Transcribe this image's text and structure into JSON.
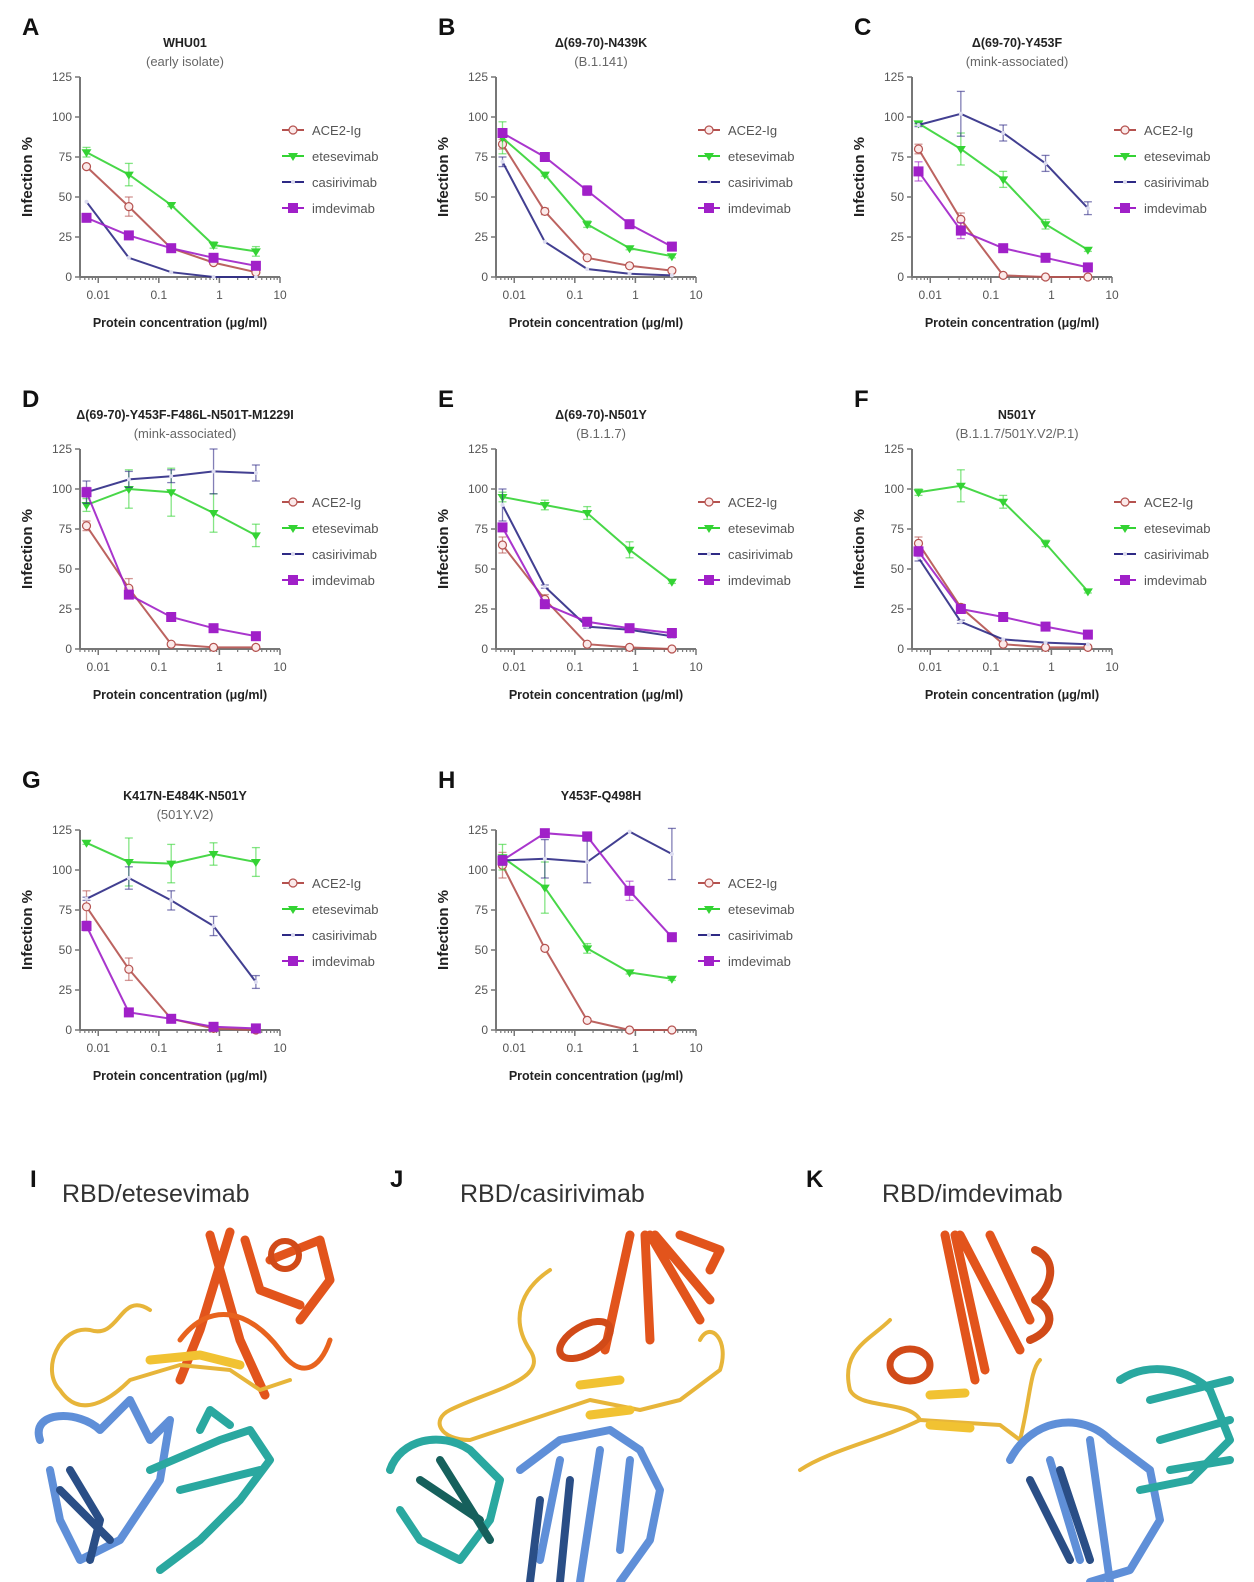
{
  "figure": {
    "legend": [
      "ACE2-Ig",
      "etesevimab",
      "casirivimab",
      "imdevimab"
    ],
    "series_colors": {
      "ACE2-Ig": "#b5524f",
      "etesevimab": "#34d334",
      "casirivimab": "#2e2a85",
      "imdevimab": "#a020c8"
    },
    "structures": [
      {
        "letter": "I",
        "title": "RBD/etesevimab"
      },
      {
        "letter": "J",
        "title": "RBD/casirivimab"
      },
      {
        "letter": "K",
        "title": "RBD/imdevimab"
      }
    ],
    "structure_colors": {
      "rbd_core": "#e2541c",
      "rbd_loop": "#e7b53a",
      "heavy_chain": "#5f8fd8",
      "heavy_chain_dark": "#2a4e86",
      "light_chain": "#2aa8a0"
    }
  },
  "chart_data": [
    {
      "type": "line",
      "letter": "A",
      "title": "WHU01",
      "subtitle": "(early isolate)",
      "xlabel": "Protein concentration (μg/ml)",
      "ylabel": "Infection %",
      "xscale": "log",
      "xlim": [
        0.005,
        10
      ],
      "ylim": [
        0,
        125
      ],
      "xticks": [
        "0.01",
        "0.1",
        "1",
        "10"
      ],
      "yticks": [
        "0",
        "25",
        "50",
        "75",
        "100",
        "125"
      ],
      "legend_position": "right",
      "x": [
        0.0064,
        0.032,
        0.16,
        0.8,
        4
      ],
      "series": [
        {
          "name": "ACE2-Ig",
          "values": [
            69,
            44,
            18,
            9,
            3
          ],
          "errors": [
            1,
            6,
            2,
            1,
            1
          ]
        },
        {
          "name": "etesevimab",
          "values": [
            78,
            64,
            45,
            20,
            16
          ],
          "errors": [
            3,
            7,
            1,
            2,
            3
          ]
        },
        {
          "name": "casirivimab",
          "values": [
            47,
            12,
            3,
            0,
            0
          ],
          "errors": [
            0,
            0,
            0,
            0,
            0
          ]
        },
        {
          "name": "imdevimab",
          "values": [
            37,
            26,
            18,
            12,
            7
          ],
          "errors": [
            1,
            1,
            2,
            1,
            1
          ]
        }
      ]
    },
    {
      "type": "line",
      "letter": "B",
      "title": "Δ(69-70)-N439K",
      "subtitle": "(B.1.141)",
      "xlabel": "Protein concentration (μg/ml)",
      "ylabel": "Infection %",
      "xscale": "log",
      "xlim": [
        0.005,
        10
      ],
      "ylim": [
        0,
        125
      ],
      "xticks": [
        "0.01",
        "0.1",
        "1",
        "10"
      ],
      "yticks": [
        "0",
        "25",
        "50",
        "75",
        "100",
        "125"
      ],
      "legend_position": "right",
      "x": [
        0.0064,
        0.032,
        0.16,
        0.8,
        4
      ],
      "series": [
        {
          "name": "ACE2-Ig",
          "values": [
            83,
            41,
            12,
            7,
            4
          ],
          "errors": [
            3,
            2,
            1,
            1,
            1
          ]
        },
        {
          "name": "etesevimab",
          "values": [
            87,
            64,
            33,
            18,
            13
          ],
          "errors": [
            10,
            1,
            2,
            1,
            1
          ]
        },
        {
          "name": "casirivimab",
          "values": [
            72,
            22,
            5,
            2,
            1
          ],
          "errors": [
            3,
            0,
            0,
            0,
            0
          ]
        },
        {
          "name": "imdevimab",
          "values": [
            90,
            75,
            54,
            33,
            19
          ],
          "errors": [
            2,
            1,
            3,
            1,
            2
          ]
        }
      ]
    },
    {
      "type": "line",
      "letter": "C",
      "title": "Δ(69-70)-Y453F",
      "subtitle": "(mink-associated)",
      "xlabel": "Protein concentration (μg/ml)",
      "ylabel": "Infection %",
      "xscale": "log",
      "xlim": [
        0.005,
        10
      ],
      "ylim": [
        0,
        125
      ],
      "xticks": [
        "0.01",
        "0.1",
        "1",
        "10"
      ],
      "yticks": [
        "0",
        "25",
        "50",
        "75",
        "100",
        "125"
      ],
      "legend_position": "right",
      "x": [
        0.0064,
        0.032,
        0.16,
        0.8,
        4
      ],
      "series": [
        {
          "name": "ACE2-Ig",
          "values": [
            80,
            36,
            1,
            0,
            0
          ],
          "errors": [
            3,
            4,
            0,
            0,
            0
          ]
        },
        {
          "name": "etesevimab",
          "values": [
            96,
            80,
            61,
            33,
            17
          ],
          "errors": [
            1,
            10,
            5,
            3,
            1
          ]
        },
        {
          "name": "casirivimab",
          "values": [
            95,
            102,
            90,
            71,
            43
          ],
          "errors": [
            1,
            14,
            5,
            5,
            4
          ]
        },
        {
          "name": "imdevimab",
          "values": [
            66,
            29,
            18,
            12,
            6
          ],
          "errors": [
            6,
            5,
            2,
            2,
            1
          ]
        }
      ]
    },
    {
      "type": "line",
      "letter": "D",
      "title": "Δ(69-70)-Y453F-F486L-N501T-M1229I",
      "subtitle": "(mink-associated)",
      "xlabel": "Protein concentration (μg/ml)",
      "ylabel": "Infection %",
      "xscale": "log",
      "xlim": [
        0.005,
        10
      ],
      "ylim": [
        0,
        125
      ],
      "xticks": [
        "0.01",
        "0.1",
        "1",
        "10"
      ],
      "yticks": [
        "0",
        "25",
        "50",
        "75",
        "100",
        "125"
      ],
      "legend_position": "right",
      "x": [
        0.0064,
        0.032,
        0.16,
        0.8,
        4
      ],
      "series": [
        {
          "name": "ACE2-Ig",
          "values": [
            77,
            38,
            3,
            1,
            1
          ],
          "errors": [
            3,
            6,
            1,
            0,
            0
          ]
        },
        {
          "name": "etesevimab",
          "values": [
            90,
            100,
            98,
            85,
            71
          ],
          "errors": [
            4,
            12,
            15,
            12,
            7
          ]
        },
        {
          "name": "casirivimab",
          "values": [
            98,
            106,
            108,
            111,
            110
          ],
          "errors": [
            7,
            5,
            4,
            14,
            5
          ]
        },
        {
          "name": "imdevimab",
          "values": [
            98,
            34,
            20,
            13,
            8
          ],
          "errors": [
            3,
            2,
            1,
            1,
            1
          ]
        }
      ]
    },
    {
      "type": "line",
      "letter": "E",
      "title": "Δ(69-70)-N501Y",
      "subtitle": "(B.1.1.7)",
      "xlabel": "Protein concentration (μg/ml)",
      "ylabel": "Infection %",
      "xscale": "log",
      "xlim": [
        0.005,
        10
      ],
      "ylim": [
        0,
        125
      ],
      "xticks": [
        "0.01",
        "0.1",
        "1",
        "10"
      ],
      "yticks": [
        "0",
        "25",
        "50",
        "75",
        "100",
        "125"
      ],
      "legend_position": "right",
      "x": [
        0.0064,
        0.032,
        0.16,
        0.8,
        4
      ],
      "series": [
        {
          "name": "ACE2-Ig",
          "values": [
            65,
            31,
            3,
            1,
            0
          ],
          "errors": [
            5,
            3,
            1,
            0,
            0
          ]
        },
        {
          "name": "etesevimab",
          "values": [
            95,
            90,
            85,
            62,
            42
          ],
          "errors": [
            3,
            3,
            4,
            5,
            1
          ]
        },
        {
          "name": "casirivimab",
          "values": [
            90,
            39,
            14,
            12,
            8
          ],
          "errors": [
            10,
            1,
            1,
            1,
            1
          ]
        },
        {
          "name": "imdevimab",
          "values": [
            76,
            28,
            17,
            13,
            10
          ],
          "errors": [
            2,
            2,
            1,
            1,
            1
          ]
        }
      ]
    },
    {
      "type": "line",
      "letter": "F",
      "title": "N501Y",
      "subtitle": "(B.1.1.7/501Y.V2/P.1)",
      "xlabel": "Protein concentration (μg/ml)",
      "ylabel": "Infection %",
      "xscale": "log",
      "xlim": [
        0.005,
        10
      ],
      "ylim": [
        0,
        125
      ],
      "xticks": [
        "0.01",
        "0.1",
        "1",
        "10"
      ],
      "yticks": [
        "0",
        "25",
        "50",
        "75",
        "100",
        "125"
      ],
      "legend_position": "right",
      "x": [
        0.0064,
        0.032,
        0.16,
        0.8,
        4
      ],
      "series": [
        {
          "name": "ACE2-Ig",
          "values": [
            66,
            26,
            3,
            1,
            1
          ],
          "errors": [
            4,
            2,
            1,
            0,
            0
          ]
        },
        {
          "name": "etesevimab",
          "values": [
            98,
            102,
            92,
            66,
            36
          ],
          "errors": [
            2,
            10,
            4,
            2,
            1
          ]
        },
        {
          "name": "casirivimab",
          "values": [
            57,
            17,
            6,
            4,
            3
          ],
          "errors": [
            2,
            1,
            0,
            0,
            0
          ]
        },
        {
          "name": "imdevimab",
          "values": [
            61,
            25,
            20,
            14,
            9
          ],
          "errors": [
            3,
            1,
            1,
            1,
            1
          ]
        }
      ]
    },
    {
      "type": "line",
      "letter": "G",
      "title": "K417N-E484K-N501Y",
      "subtitle": "(501Y.V2)",
      "xlabel": "Protein concentration (μg/ml)",
      "ylabel": "Infection %",
      "xscale": "log",
      "xlim": [
        0.005,
        10
      ],
      "ylim": [
        0,
        125
      ],
      "xticks": [
        "0.01",
        "0.1",
        "1",
        "10"
      ],
      "yticks": [
        "0",
        "25",
        "50",
        "75",
        "100",
        "125"
      ],
      "legend_position": "right",
      "x": [
        0.0064,
        0.032,
        0.16,
        0.8,
        4
      ],
      "series": [
        {
          "name": "ACE2-Ig",
          "values": [
            77,
            38,
            7,
            1,
            0
          ],
          "errors": [
            10,
            7,
            2,
            0,
            0
          ]
        },
        {
          "name": "etesevimab",
          "values": [
            117,
            105,
            104,
            110,
            105
          ],
          "errors": [
            1,
            15,
            12,
            7,
            9
          ]
        },
        {
          "name": "casirivimab",
          "values": [
            82,
            95,
            81,
            65,
            30
          ],
          "errors": [
            1,
            7,
            6,
            6,
            4
          ]
        },
        {
          "name": "imdevimab",
          "values": [
            65,
            11,
            7,
            2,
            1
          ],
          "errors": [
            3,
            1,
            1,
            1,
            1
          ]
        }
      ]
    },
    {
      "type": "line",
      "letter": "H",
      "title": "Y453F-Q498H",
      "subtitle": "",
      "xlabel": "Protein concentration (μg/ml)",
      "ylabel": "Infection %",
      "xscale": "log",
      "xlim": [
        0.005,
        10
      ],
      "ylim": [
        0,
        125
      ],
      "xticks": [
        "0.01",
        "0.1",
        "1",
        "10"
      ],
      "yticks": [
        "0",
        "25",
        "50",
        "75",
        "100",
        "125"
      ],
      "legend_position": "right",
      "x": [
        0.0064,
        0.032,
        0.16,
        0.8,
        4
      ],
      "series": [
        {
          "name": "ACE2-Ig",
          "values": [
            103,
            51,
            6,
            0,
            0
          ],
          "errors": [
            8,
            1,
            1,
            0,
            0
          ]
        },
        {
          "name": "etesevimab",
          "values": [
            108,
            89,
            51,
            36,
            32
          ],
          "errors": [
            8,
            16,
            3,
            1,
            1
          ]
        },
        {
          "name": "casirivimab",
          "values": [
            106,
            107,
            105,
            124,
            110
          ],
          "errors": [
            3,
            12,
            13,
            0,
            16
          ]
        },
        {
          "name": "imdevimab",
          "values": [
            106,
            123,
            121,
            87,
            58
          ],
          "errors": [
            3,
            1,
            1,
            6,
            1
          ]
        }
      ]
    }
  ]
}
